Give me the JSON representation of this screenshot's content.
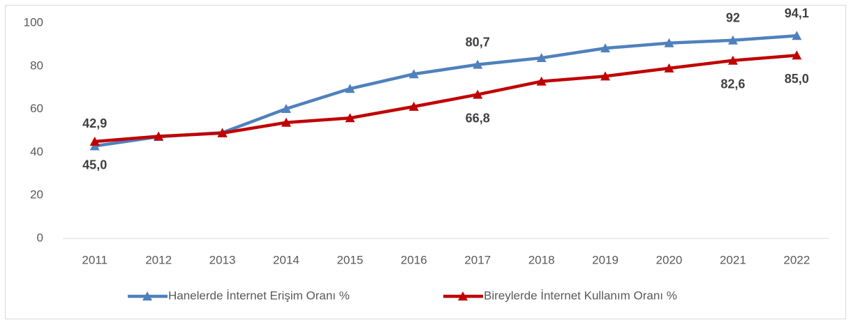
{
  "chart_data": {
    "type": "line",
    "categories": [
      "2011",
      "2012",
      "2013",
      "2014",
      "2015",
      "2016",
      "2017",
      "2018",
      "2019",
      "2020",
      "2021",
      "2022"
    ],
    "series": [
      {
        "name": "Hanelerde İnternet Erişim Oranı %",
        "color": "#4f81bd",
        "values": [
          42.9,
          47.2,
          49.1,
          60.2,
          69.5,
          76.3,
          80.7,
          83.8,
          88.3,
          90.7,
          92.0,
          94.1
        ],
        "value_labels": [
          "42,9",
          null,
          null,
          null,
          null,
          null,
          "80,7",
          null,
          null,
          null,
          "92",
          "94,1"
        ]
      },
      {
        "name": "Bireylerde İnternet Kullanım Oranı %",
        "color": "#c00000",
        "values": [
          45.0,
          47.4,
          48.9,
          53.8,
          55.9,
          61.2,
          66.8,
          72.9,
          75.3,
          79.0,
          82.6,
          85.0
        ],
        "value_labels": [
          "45,0",
          null,
          null,
          null,
          null,
          null,
          "66,8",
          null,
          null,
          null,
          "82,6",
          "85,0"
        ]
      }
    ],
    "ylim": [
      0,
      100
    ],
    "yticks": [
      0,
      20,
      40,
      60,
      80,
      100
    ],
    "grid": false,
    "legend": "bottom"
  }
}
